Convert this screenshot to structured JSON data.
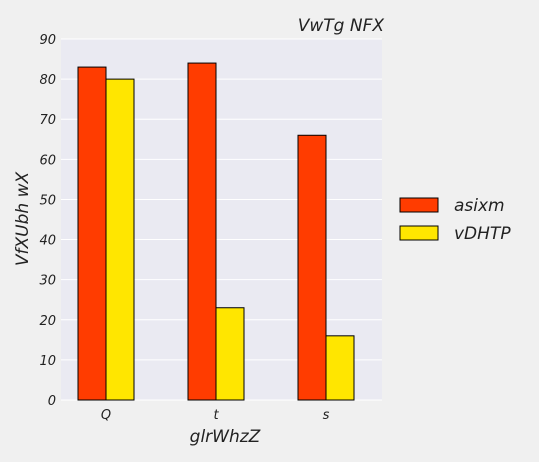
{
  "chart_data": {
    "type": "bar",
    "title": "VwTg NFX",
    "xlabel": "glrWhzZ",
    "ylabel": "VfXUbh wX",
    "categories": [
      "Q",
      "t",
      "s"
    ],
    "series": [
      {
        "name": "asixm",
        "values": [
          83,
          84,
          66
        ],
        "color": "#ff3c00"
      },
      {
        "name": "vDHTP",
        "values": [
          80,
          23,
          16
        ],
        "color": "#ffe600"
      }
    ],
    "ylim": [
      0,
      90
    ],
    "yticks": [
      "0",
      "10",
      "20",
      "30",
      "40",
      "50",
      "60",
      "70",
      "80",
      "90"
    ],
    "grid": true,
    "legend_position": "right",
    "plot_background": "#eaeaf2",
    "figure_background": "#f0f0f0",
    "bar_edge_color": "#000000"
  }
}
